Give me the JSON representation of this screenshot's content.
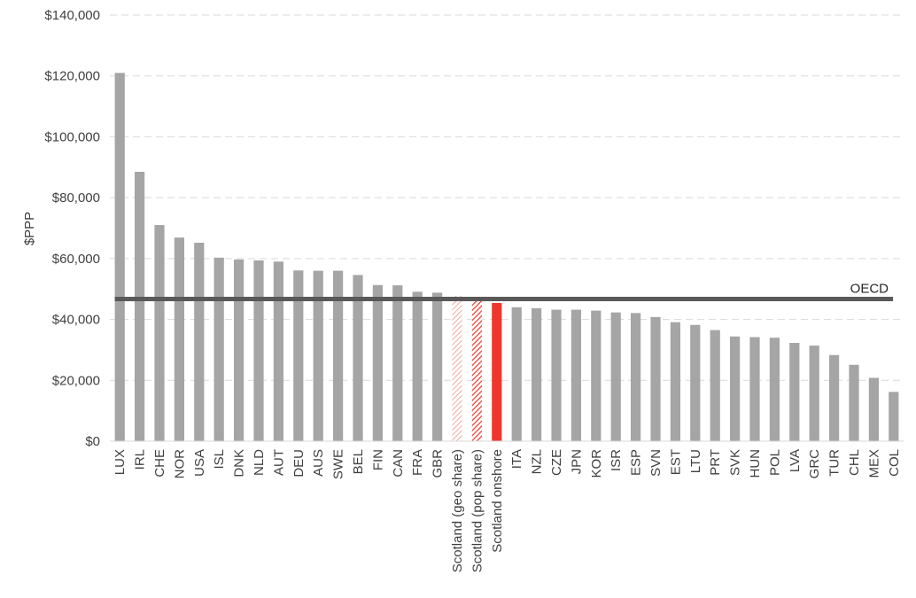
{
  "chart_data": {
    "type": "bar",
    "ylabel": "$PPP",
    "ylim": [
      0,
      140000
    ],
    "ytick_labels": [
      "$0",
      "$20,000",
      "$40,000",
      "$60,000",
      "$80,000",
      "$100,000",
      "$120,000",
      "$140,000"
    ],
    "ytick_values": [
      0,
      20000,
      40000,
      60000,
      80000,
      100000,
      120000,
      140000
    ],
    "grid": "horizontal dashed",
    "categories": [
      "LUX",
      "IRL",
      "CHE",
      "NOR",
      "USA",
      "ISL",
      "DNK",
      "NLD",
      "AUT",
      "DEU",
      "AUS",
      "SWE",
      "BEL",
      "FIN",
      "CAN",
      "FRA",
      "GBR",
      "Scotland (geo share)",
      "Scotland (pop share)",
      "Scotland onshore",
      "ITA",
      "NZL",
      "CZE",
      "JPN",
      "KOR",
      "ISR",
      "ESP",
      "SVN",
      "EST",
      "LTU",
      "PRT",
      "SVK",
      "HUN",
      "POL",
      "LVA",
      "GRC",
      "TUR",
      "CHL",
      "MEX",
      "COL"
    ],
    "values": [
      121000,
      88500,
      71000,
      66900,
      65200,
      60300,
      59700,
      59400,
      59000,
      56100,
      56000,
      56000,
      54600,
      51300,
      51200,
      49100,
      48800,
      47700,
      46100,
      45400,
      44000,
      43700,
      43200,
      43200,
      42900,
      42300,
      42100,
      40800,
      39100,
      38200,
      36500,
      34400,
      34200,
      34000,
      32300,
      31400,
      28300,
      25100,
      20800,
      16200
    ],
    "bar_styles": [
      "solid",
      "solid",
      "solid",
      "solid",
      "solid",
      "solid",
      "solid",
      "solid",
      "solid",
      "solid",
      "solid",
      "solid",
      "solid",
      "solid",
      "solid",
      "solid",
      "solid",
      "hatched-light",
      "hatched",
      "highlight",
      "solid",
      "solid",
      "solid",
      "solid",
      "solid",
      "solid",
      "solid",
      "solid",
      "solid",
      "solid",
      "solid",
      "solid",
      "solid",
      "solid",
      "solid",
      "solid",
      "solid",
      "solid",
      "solid",
      "solid"
    ],
    "reference_line": {
      "label": "OECD",
      "value": 46700
    },
    "colors": {
      "bar": "#a5a5a5",
      "highlight": "#f0362a",
      "reference": "#595959",
      "grid": "#d9d9d9",
      "axis": "#d9d9d9"
    }
  }
}
